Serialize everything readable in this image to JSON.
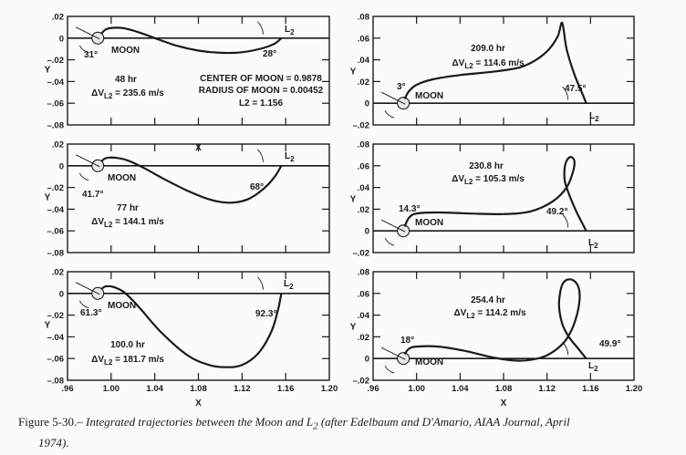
{
  "chart_data": [
    {
      "type": "line",
      "panel": "top-left",
      "xlabel": "X",
      "ylabel": "Y",
      "xlim": [
        0.96,
        1.2
      ],
      "ylim": [
        -0.08,
        0.02
      ],
      "xticks": [
        ".96",
        "1.00",
        "1.04",
        "1.08",
        "1.12",
        "1.16",
        "1.20"
      ],
      "yticks": [
        ".02",
        "0",
        "-.02",
        "-.04",
        "-.06",
        "-.08"
      ],
      "ytick_values": [
        0.02,
        0,
        -0.02,
        -0.04,
        -0.06,
        -0.08
      ],
      "time": "48 hr",
      "dv": "= 235.6 m/s",
      "angles": [
        "31°",
        "28°"
      ],
      "notes": [
        "CENTER OF MOON = 0.9878",
        "RADIUS OF MOON = 0.00452",
        "L2 = 1.156"
      ],
      "x": [
        0.991,
        0.995,
        1.002,
        1.012,
        1.025,
        1.04,
        1.06,
        1.08,
        1.1,
        1.12,
        1.14,
        1.15,
        1.156
      ],
      "y": [
        0.004,
        0.008,
        0.0095,
        0.009,
        0.0055,
        0.0,
        -0.007,
        -0.0115,
        -0.0135,
        -0.013,
        -0.009,
        -0.005,
        0.0
      ]
    },
    {
      "type": "line",
      "panel": "top-right",
      "xlabel": "",
      "ylabel": "Y",
      "xlim": [
        0.96,
        1.2
      ],
      "ylim": [
        -0.02,
        0.08
      ],
      "xticks": [
        ".96",
        "1.00",
        "1.04",
        "1.08",
        "1.12",
        "1.16",
        "1.20"
      ],
      "yticks": [
        ".08",
        ".06",
        ".04",
        ".02",
        "0",
        "-.02"
      ],
      "ytick_values": [
        0.08,
        0.06,
        0.04,
        0.02,
        0,
        -0.02
      ],
      "time": "209.0 hr",
      "dv": "= 114.6 m/s",
      "angles": [
        "3°",
        "47.5°"
      ],
      "x": [
        0.989,
        0.993,
        1.0,
        1.015,
        1.04,
        1.07,
        1.095,
        1.11,
        1.122,
        1.13,
        1.134,
        1.138,
        1.145,
        1.152,
        1.156
      ],
      "y": [
        0.004,
        0.011,
        0.017,
        0.022,
        0.026,
        0.029,
        0.033,
        0.04,
        0.05,
        0.062,
        0.074,
        0.05,
        0.027,
        0.01,
        0.0
      ]
    },
    {
      "type": "line",
      "panel": "middle-left",
      "xlabel": "",
      "ylabel": "Y",
      "xlim": [
        0.96,
        1.2
      ],
      "ylim": [
        -0.08,
        0.02
      ],
      "xticks": [
        ".96",
        "1.00",
        "1.04",
        "1.08",
        "1.12",
        "1.16",
        "1.20"
      ],
      "yticks": [
        ".02",
        "0",
        "-.02",
        "-.04",
        "-.06",
        "-.08"
      ],
      "ytick_values": [
        0.02,
        0,
        -0.02,
        -0.04,
        -0.06,
        -0.08
      ],
      "time": "77 hr",
      "dv": "= 144.1 m/s",
      "angles": [
        "41.7°",
        "68°"
      ],
      "x": [
        0.991,
        0.995,
        1.003,
        1.015,
        1.03,
        1.05,
        1.07,
        1.09,
        1.108,
        1.125,
        1.14,
        1.15,
        1.156
      ],
      "y": [
        0.004,
        0.007,
        0.0075,
        0.005,
        -0.002,
        -0.013,
        -0.023,
        -0.031,
        -0.034,
        -0.031,
        -0.021,
        -0.01,
        0.0
      ]
    },
    {
      "type": "line",
      "panel": "middle-right",
      "xlabel": "",
      "ylabel": "Y",
      "xlim": [
        0.96,
        1.2
      ],
      "ylim": [
        -0.02,
        0.08
      ],
      "xticks": [
        ".96",
        "1.00",
        "1.04",
        "1.08",
        "1.12",
        "1.16",
        "1.20"
      ],
      "yticks": [
        ".08",
        ".06",
        ".04",
        ".02",
        "0",
        "-.02"
      ],
      "ytick_values": [
        0.08,
        0.06,
        0.04,
        0.02,
        0,
        -0.02
      ],
      "time": "230.8 hr",
      "dv": "= 105.3 m/s",
      "angles": [
        "14.3°",
        "49.2°"
      ],
      "x": [
        0.989,
        0.993,
        1.0,
        1.02,
        1.05,
        1.08,
        1.105,
        1.125,
        1.138,
        1.144,
        1.145,
        1.141,
        1.137,
        1.136,
        1.138,
        1.146,
        1.156
      ],
      "y": [
        0.004,
        0.012,
        0.016,
        0.017,
        0.016,
        0.0155,
        0.018,
        0.027,
        0.04,
        0.055,
        0.065,
        0.068,
        0.062,
        0.05,
        0.04,
        0.02,
        0.0
      ]
    },
    {
      "type": "line",
      "panel": "bottom-left",
      "xlabel": "X",
      "ylabel": "Y",
      "xlim": [
        0.96,
        1.2
      ],
      "ylim": [
        -0.08,
        0.02
      ],
      "xticks": [
        ".96",
        "1.00",
        "1.04",
        "1.08",
        "1.12",
        "1.16",
        "1.20"
      ],
      "yticks": [
        ".02",
        "0",
        "-.02",
        "-.04",
        "-.06",
        "-.08"
      ],
      "ytick_values": [
        0.02,
        0,
        -0.02,
        -0.04,
        -0.06,
        -0.08
      ],
      "time": "100.0 hr",
      "dv": "= 181.7 m/s",
      "angles": [
        "61.3°",
        "92.3°"
      ],
      "x": [
        0.991,
        0.995,
        1.002,
        1.012,
        1.025,
        1.045,
        1.07,
        1.09,
        1.105,
        1.12,
        1.135,
        1.147,
        1.153,
        1.156
      ],
      "y": [
        0.004,
        0.0065,
        0.006,
        0.001,
        -0.012,
        -0.035,
        -0.057,
        -0.066,
        -0.068,
        -0.066,
        -0.055,
        -0.035,
        -0.015,
        0.0
      ]
    },
    {
      "type": "line",
      "panel": "bottom-right",
      "xlabel": "X",
      "ylabel": "Y",
      "xlim": [
        0.96,
        1.2
      ],
      "ylim": [
        -0.02,
        0.08
      ],
      "xticks": [
        ".96",
        "1.00",
        "1.04",
        "1.08",
        "1.12",
        "1.16",
        "1.20"
      ],
      "yticks": [
        ".08",
        ".06",
        ".04",
        ".02",
        "0",
        "-.02"
      ],
      "ytick_values": [
        0.08,
        0.06,
        0.04,
        0.02,
        0,
        -0.02
      ],
      "time": "254.4 hr",
      "dv": "= 114.2 m/s",
      "angles": [
        "18°",
        "49.9°"
      ],
      "x": [
        0.989,
        0.993,
        1.0,
        1.02,
        1.045,
        1.07,
        1.095,
        1.115,
        1.128,
        1.138,
        1.146,
        1.15,
        1.148,
        1.141,
        1.134,
        1.131,
        1.134,
        1.14,
        1.148,
        1.156
      ],
      "y": [
        0.004,
        0.009,
        0.011,
        0.011,
        0.007,
        0.001,
        -0.002,
        0.001,
        0.008,
        0.018,
        0.035,
        0.055,
        0.068,
        0.073,
        0.068,
        0.05,
        0.032,
        0.02,
        0.01,
        0.0
      ]
    }
  ],
  "labels": {
    "moon": "MOON",
    "l2": "L",
    "l2_sub": "2",
    "dv_prefix": "ΔV",
    "dv_sub": "L2"
  },
  "caption": {
    "number": "Figure 5-30.–",
    "text": " Integrated trajectories between the Moon and L",
    "sub": "2",
    "text2": " (after Edelbaum and D'Amario, AIAA Journal, April",
    "line2": "1974)."
  },
  "colors": {
    "ink": "#1a1a1a",
    "paper": "#fbfbf9"
  }
}
